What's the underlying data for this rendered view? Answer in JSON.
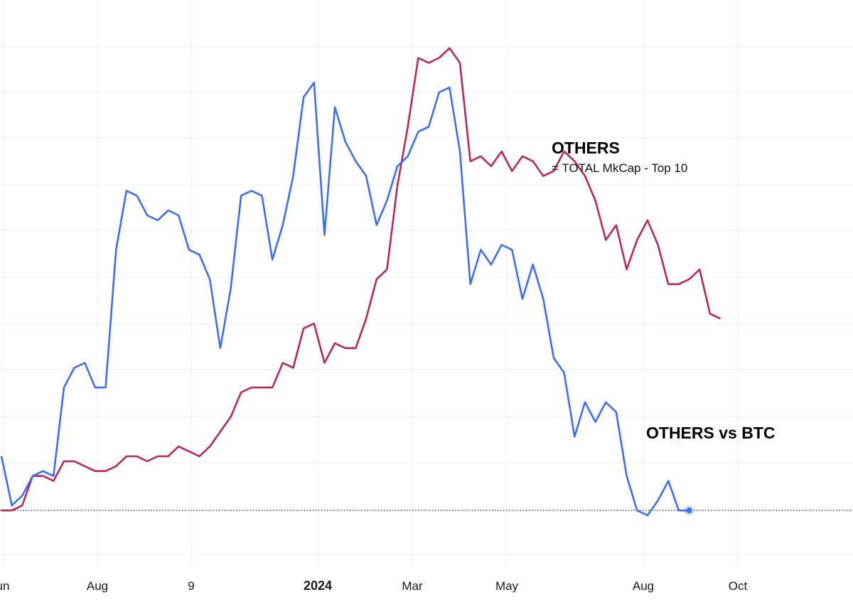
{
  "chart_data": {
    "type": "line",
    "x_tick_labels": [
      "un",
      "Aug",
      "9",
      "2024",
      "Mar",
      "May",
      "Aug",
      "Oct"
    ],
    "x_tick_bold": [
      "2024"
    ],
    "ylim": [
      0,
      100
    ],
    "grid": true,
    "annotations": {
      "others_title": "OTHERS",
      "others_sub": "= TOTAL MkCap - Top 10",
      "vs_btc_title": "OTHERS vs BTC"
    },
    "series": [
      {
        "name": "OTHERS",
        "color": "#b5275e",
        "values": [
          2,
          2,
          3,
          9,
          9,
          8,
          12,
          12,
          11,
          10,
          10,
          11,
          13,
          13,
          12,
          13,
          13,
          15,
          14,
          13,
          15,
          18,
          21,
          26,
          27,
          27,
          27,
          32,
          31,
          39,
          40,
          32,
          36,
          35,
          35,
          41,
          49,
          51,
          68,
          80,
          94,
          93,
          94,
          96,
          93,
          73,
          74,
          72,
          75,
          71,
          74,
          73,
          70,
          71,
          75,
          73,
          70,
          65,
          57,
          60,
          51,
          57,
          61,
          56,
          48,
          48,
          49,
          51,
          42,
          41
        ]
      },
      {
        "name": "OTHERS vs BTC",
        "color": "#3b6ff0",
        "values": [
          13,
          3,
          5,
          9,
          10,
          9,
          27,
          31,
          32,
          27,
          27,
          55,
          67,
          66,
          62,
          61,
          63,
          62,
          55,
          54,
          49,
          35,
          47,
          66,
          67,
          66,
          53,
          60,
          70,
          86,
          89,
          58,
          84,
          77,
          73,
          70,
          60,
          65,
          72,
          74,
          79,
          80,
          87,
          88,
          75,
          48,
          55,
          52,
          56,
          55,
          45,
          52,
          45,
          33,
          30,
          17,
          24,
          20,
          24,
          22,
          9,
          2,
          1,
          4,
          8,
          2,
          2
        ]
      }
    ]
  }
}
